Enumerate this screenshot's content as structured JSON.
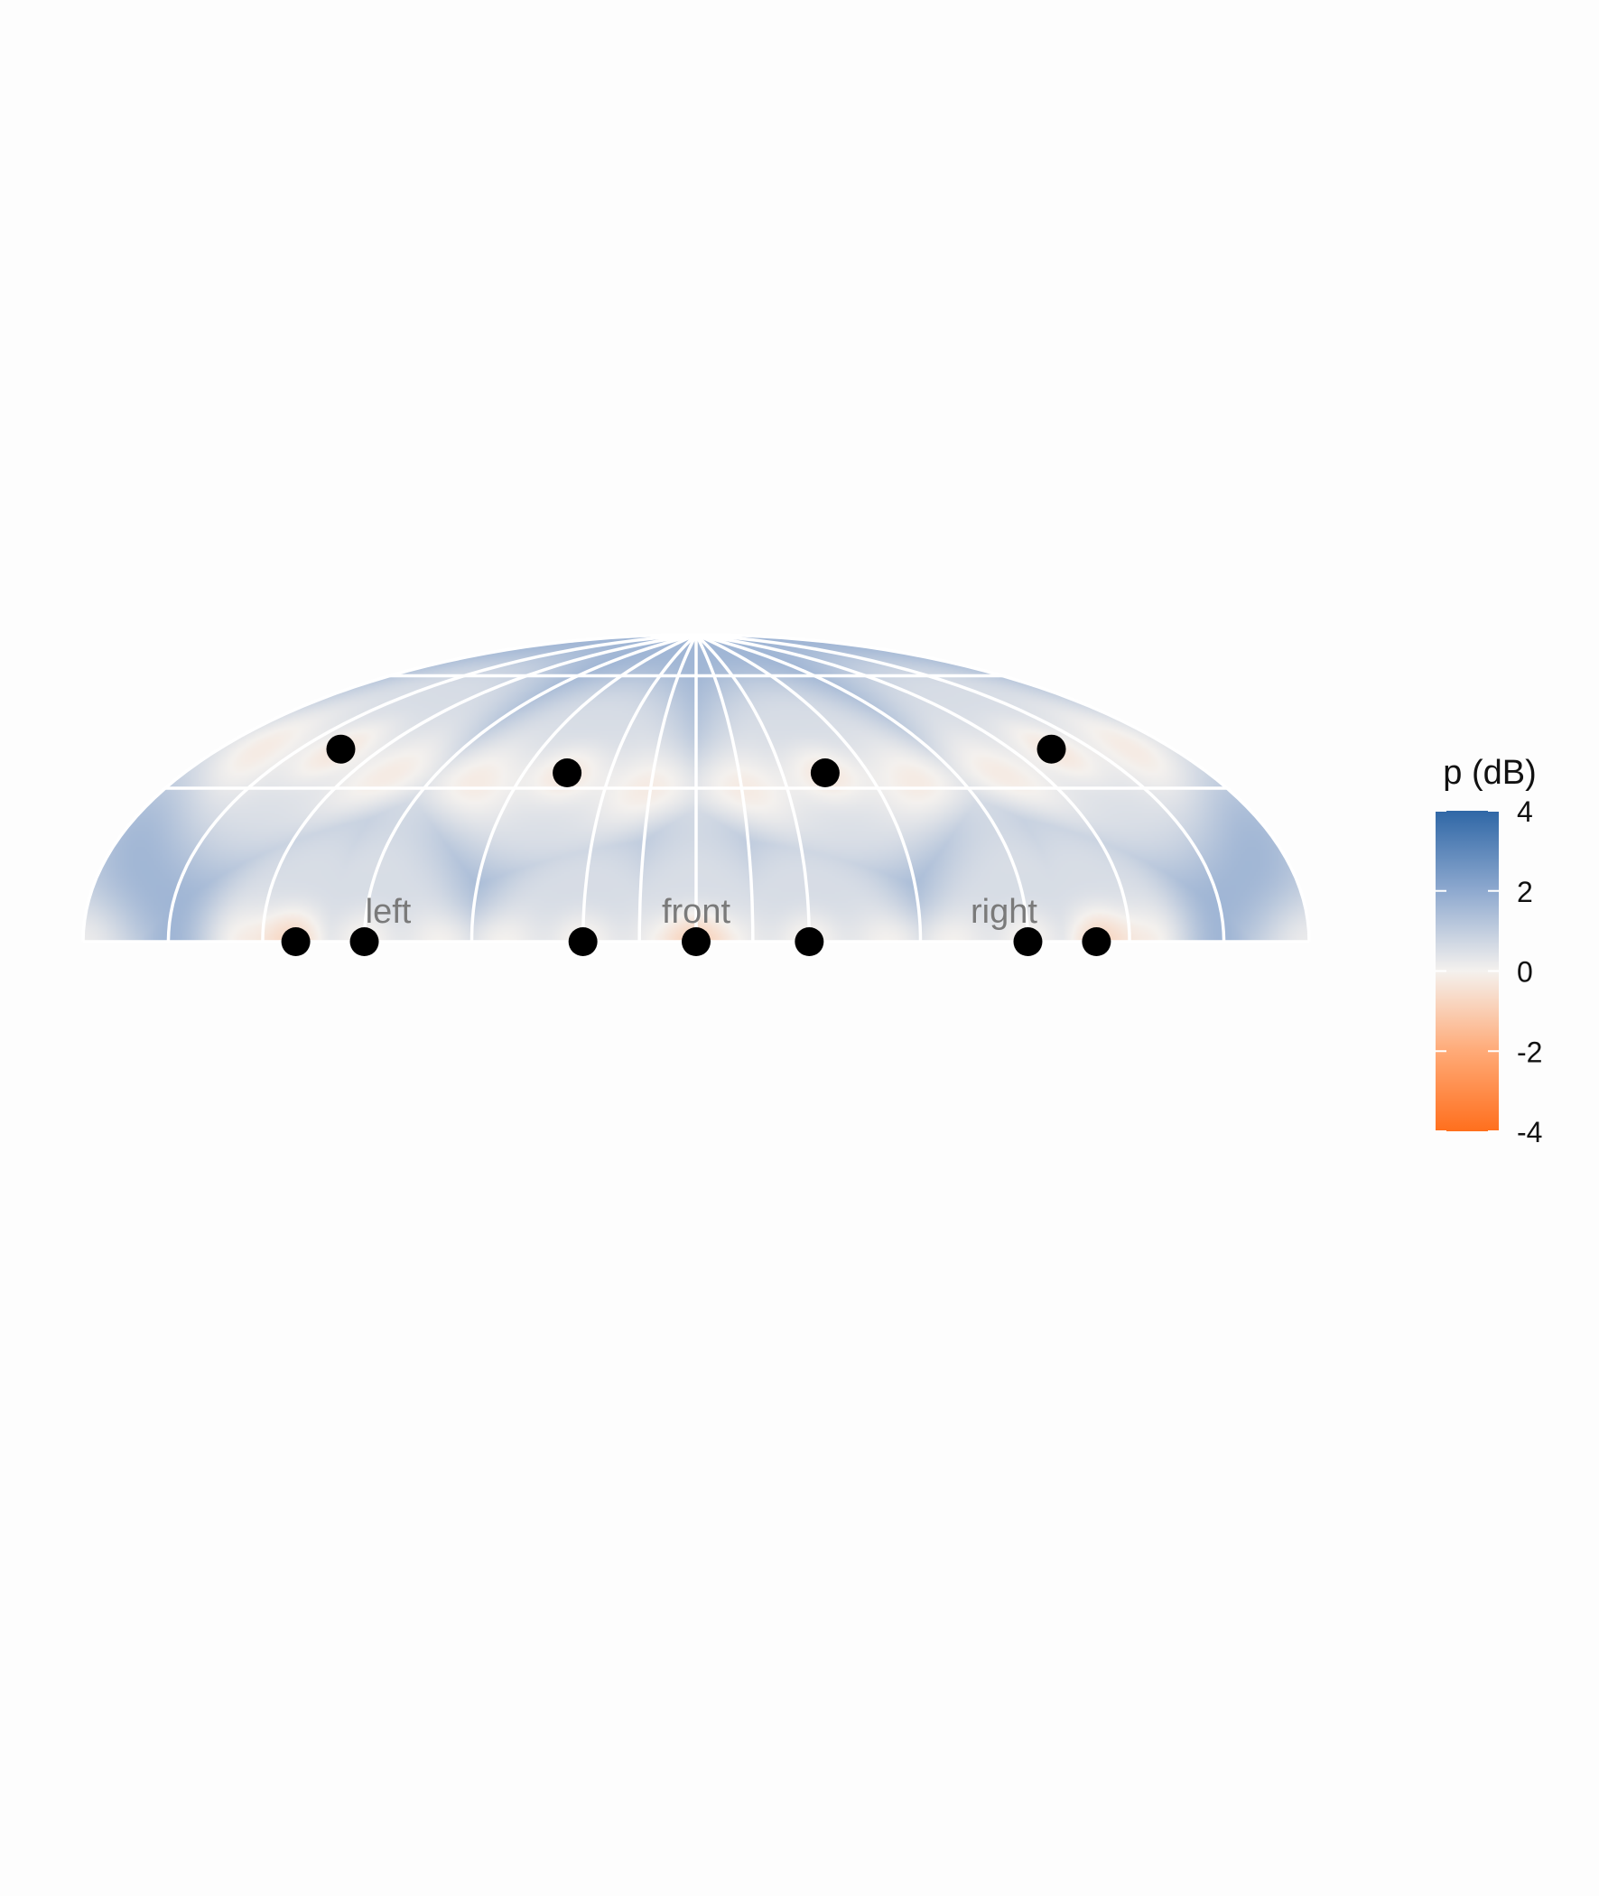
{
  "chart_data": {
    "type": "heatmap",
    "projection": "hammer-aitoff (upper hemisphere)",
    "title": "",
    "colorbar": {
      "title": "p (dB)",
      "ticks": [
        "4",
        "2",
        "0",
        "-2",
        "-4"
      ],
      "range": [
        -4,
        4
      ],
      "colors": {
        "high": "#2f67a6",
        "mid": "#f4f1ee",
        "low": "#ff6f1d"
      }
    },
    "direction_labels": [
      "left",
      "front",
      "right"
    ],
    "grid": {
      "meridians_deg": [
        -180,
        -150,
        -120,
        -90,
        -60,
        -30,
        -15,
        0,
        15,
        30,
        60,
        90,
        120,
        150,
        180
      ],
      "parallels_deg": [
        0,
        30,
        60
      ]
    },
    "loudspeakers": {
      "elevated": [
        {
          "azimuth": 135,
          "elevation": 45
        },
        {
          "azimuth": 45,
          "elevation": 45
        },
        {
          "azimuth": -45,
          "elevation": 45
        },
        {
          "azimuth": -135,
          "elevation": 45
        }
      ],
      "horizontal": [
        {
          "azimuth": 110,
          "elevation": 0
        },
        {
          "azimuth": 90,
          "elevation": 0
        },
        {
          "azimuth": 30,
          "elevation": 0
        },
        {
          "azimuth": 0,
          "elevation": 0
        },
        {
          "azimuth": -30,
          "elevation": 0
        },
        {
          "azimuth": -90,
          "elevation": 0
        },
        {
          "azimuth": -110,
          "elevation": 0
        }
      ]
    },
    "field_summary": "Mostly slightly positive level (light blue); negative (orange) level near the elevation-45 ring and between horizontal loudspeakers."
  }
}
